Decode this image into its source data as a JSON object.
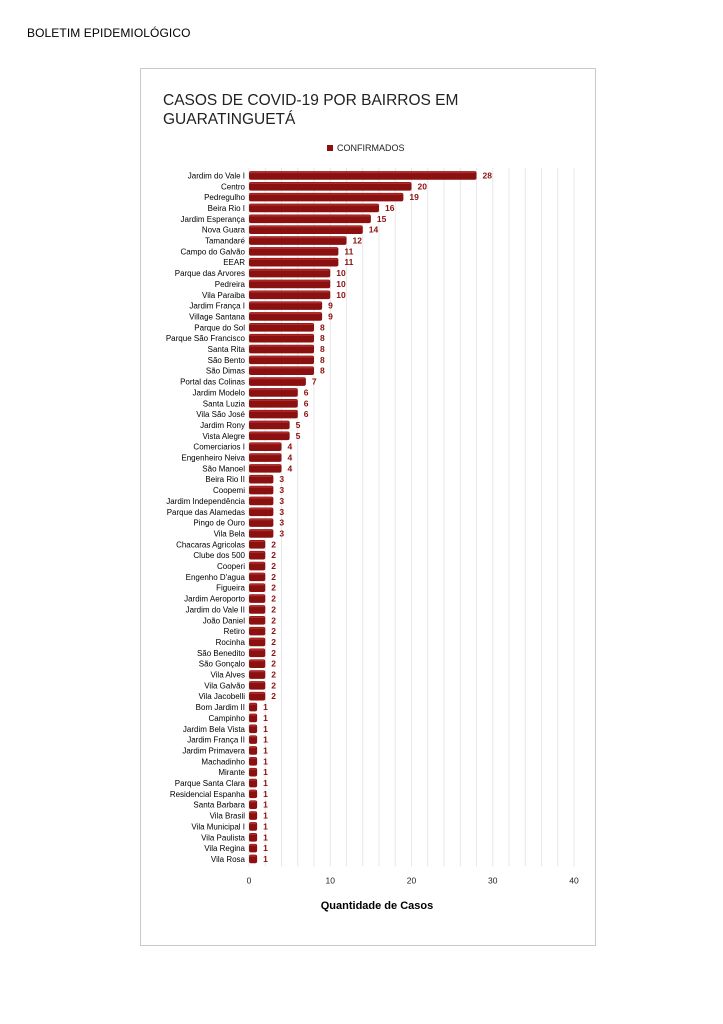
{
  "document": {
    "header": "BOLETIM EPIDEMIOLÓGICO"
  },
  "chart_data": {
    "type": "bar",
    "orientation": "horizontal",
    "title": "CASOS DE COVID-19 POR BAIRROS EM GUARATINGUETÁ",
    "xlabel": "Quantidade de Casos",
    "ylabel": "",
    "xlim": [
      0,
      40
    ],
    "xticks": [
      0,
      10,
      20,
      30,
      40
    ],
    "grid": true,
    "legend_position": "top",
    "bar_color": "#8b1010",
    "series": [
      {
        "name": "CONFIRMADOS"
      }
    ],
    "categories": [
      "Jardim do Vale I",
      "Centro",
      "Pedregulho",
      "Beira Rio I",
      "Jardim Esperança",
      "Nova Guara",
      "Tamandaré",
      "Campo do Galvão",
      "EEAR",
      "Parque das Arvores",
      "Pedreira",
      "Vila Paraiba",
      "Jardim França I",
      "Village Santana",
      "Parque do Sol",
      "Parque São Francisco",
      "Santa Rita",
      "São Bento",
      "São Dimas",
      "Portal das Colinas",
      "Jardim Modelo",
      "Santa Luzia",
      "Vila São José",
      "Jardim Rony",
      "Vista Alegre",
      "Comerciarios I",
      "Engenheiro Neiva",
      "São Manoel",
      "Beira Rio II",
      "Coopemi",
      "Jardim Independência",
      "Parque das Alamedas",
      "Pingo de Ouro",
      "Vila Bela",
      "Chacaras Agricolas",
      "Clube dos 500",
      "Cooperi",
      "Engenho D'agua",
      "Figueira",
      "Jardim Aeroporto",
      "Jardim do Vale II",
      "João Daniel",
      "Retiro",
      "Rocinha",
      "São Benedito",
      "São Gonçalo",
      "Vila Alves",
      "Vila Galvão",
      "Vila Jacobelli",
      "Bom Jardim II",
      "Campinho",
      "Jardim Bela Vista",
      "Jardim França II",
      "Jardim Primavera",
      "Machadinho",
      "Mirante",
      "Parque Santa Clara",
      "Residencial Espanha",
      "Santa Barbara",
      "Vila Brasil",
      "Vila Municipal I",
      "Vila Paulista",
      "Vila Regina",
      "Vila Rosa"
    ],
    "values": [
      28,
      20,
      19,
      16,
      15,
      14,
      12,
      11,
      11,
      10,
      10,
      10,
      9,
      9,
      8,
      8,
      8,
      8,
      8,
      7,
      6,
      6,
      6,
      5,
      5,
      4,
      4,
      4,
      3,
      3,
      3,
      3,
      3,
      3,
      2,
      2,
      2,
      2,
      2,
      2,
      2,
      2,
      2,
      2,
      2,
      2,
      2,
      2,
      2,
      1,
      1,
      1,
      1,
      1,
      1,
      1,
      1,
      1,
      1,
      1,
      1,
      1,
      1,
      1
    ]
  }
}
